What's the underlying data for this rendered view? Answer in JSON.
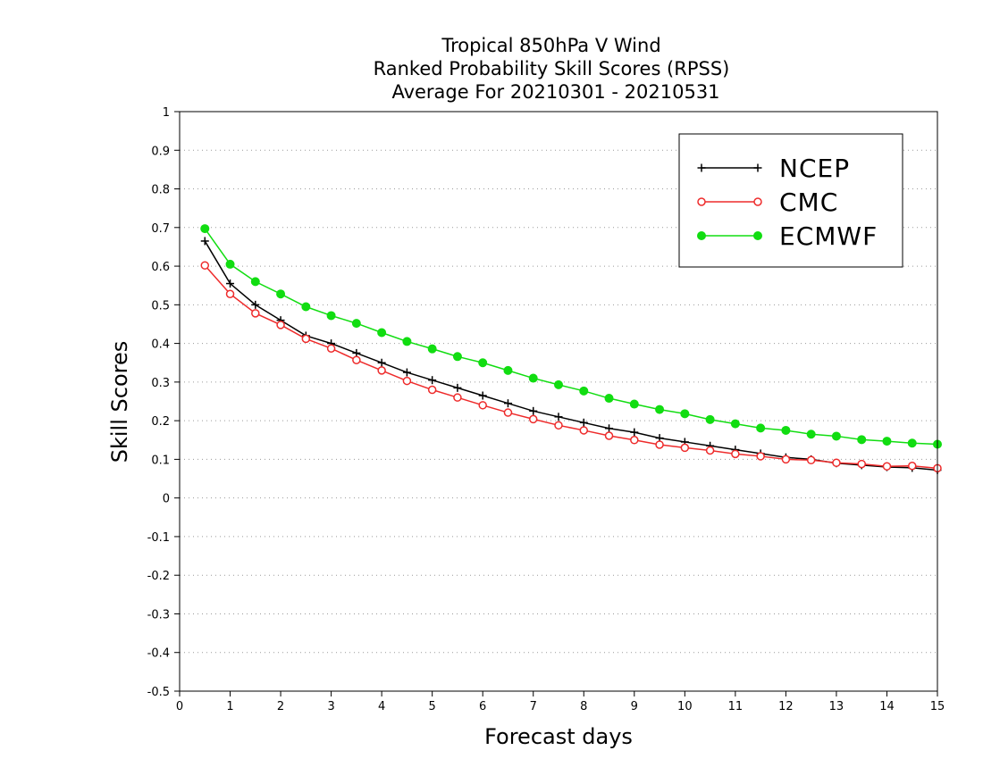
{
  "chart_data": {
    "type": "line",
    "title_lines": [
      "Tropical 850hPa V Wind",
      "Ranked Probability Skill Scores (RPSS)",
      "Average For 20210301 - 20210531"
    ],
    "xlabel": "Forecast days",
    "ylabel": "Skill Scores",
    "xlim": [
      0,
      15
    ],
    "ylim": [
      -0.5,
      1
    ],
    "x_ticks": [
      "0",
      "1",
      "2",
      "3",
      "4",
      "5",
      "6",
      "7",
      "8",
      "9",
      "10",
      "11",
      "12",
      "13",
      "14",
      "15"
    ],
    "y_ticks": [
      "-0.5",
      "-0.4",
      "-0.3",
      "-0.2",
      "-0.1",
      "0",
      "0.1",
      "0.2",
      "0.3",
      "0.4",
      "0.5",
      "0.6",
      "0.7",
      "0.8",
      "0.9",
      "1"
    ],
    "grid": "horizontal-dotted",
    "legend_position": "top-right",
    "x": [
      0.5,
      1,
      1.5,
      2,
      2.5,
      3,
      3.5,
      4,
      4.5,
      5,
      5.5,
      6,
      6.5,
      7,
      7.5,
      8,
      8.5,
      9,
      9.5,
      10,
      10.5,
      11,
      11.5,
      12,
      12.5,
      13,
      13.5,
      14,
      14.5,
      15
    ],
    "series": [
      {
        "name": "NCEP",
        "color": "#000000",
        "marker": "plus",
        "values": [
          0.665,
          0.555,
          0.5,
          0.46,
          0.42,
          0.4,
          0.375,
          0.35,
          0.325,
          0.305,
          0.285,
          0.265,
          0.245,
          0.225,
          0.21,
          0.195,
          0.18,
          0.17,
          0.155,
          0.145,
          0.135,
          0.125,
          0.115,
          0.105,
          0.1,
          0.09,
          0.085,
          0.08,
          0.078,
          0.072
        ]
      },
      {
        "name": "CMC",
        "color": "#ee2b2b",
        "marker": "open-circle",
        "values": [
          0.602,
          0.528,
          0.478,
          0.448,
          0.412,
          0.387,
          0.357,
          0.33,
          0.303,
          0.28,
          0.26,
          0.24,
          0.221,
          0.204,
          0.188,
          0.175,
          0.161,
          0.15,
          0.138,
          0.13,
          0.123,
          0.114,
          0.108,
          0.1,
          0.098,
          0.091,
          0.088,
          0.082,
          0.083,
          0.077
        ]
      },
      {
        "name": "ECMWF",
        "color": "#11dd11",
        "marker": "filled-circle",
        "values": [
          0.697,
          0.605,
          0.56,
          0.528,
          0.495,
          0.472,
          0.452,
          0.428,
          0.405,
          0.386,
          0.366,
          0.35,
          0.33,
          0.31,
          0.293,
          0.277,
          0.258,
          0.243,
          0.229,
          0.218,
          0.203,
          0.192,
          0.181,
          0.175,
          0.165,
          0.16,
          0.151,
          0.147,
          0.142,
          0.139
        ]
      }
    ]
  }
}
